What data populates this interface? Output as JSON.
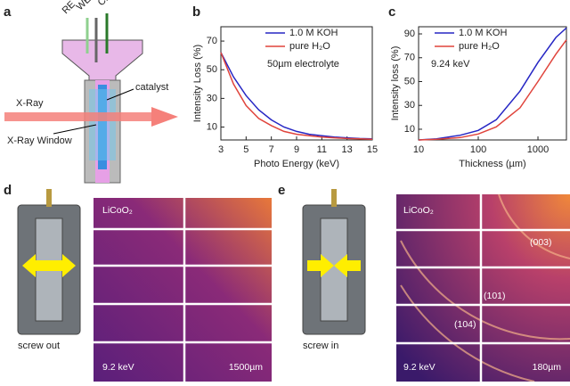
{
  "panel_labels": [
    "a",
    "b",
    "c",
    "d",
    "e"
  ],
  "panel_a": {
    "electrodes": [
      "RE",
      "WE",
      "CE"
    ],
    "catalyst": "catalyst",
    "beam": "X-Ray",
    "window": "X-Ray Window"
  },
  "chart_data": [
    {
      "type": "line",
      "xlabel": "Photo Energy (keV)",
      "ylabel": "Intensity Loss (%)",
      "annotation": "50µm electrolyte",
      "x": [
        3,
        4,
        5,
        6,
        7,
        8,
        9,
        10,
        11,
        12,
        13,
        14,
        15
      ],
      "series": [
        {
          "name": "1.0 M KOH",
          "color": "#2626c4",
          "values": [
            62,
            45,
            32,
            22,
            15,
            10,
            7,
            5,
            4,
            3,
            2.5,
            2,
            1.8
          ]
        },
        {
          "name": "pure H₂O",
          "color": "#e0443c",
          "values": [
            62,
            40,
            25,
            16,
            11,
            7,
            5,
            4,
            3,
            2.5,
            2,
            1.8,
            1.5
          ]
        }
      ],
      "xlim": [
        3,
        15
      ],
      "xticks": [
        3,
        5,
        7,
        9,
        11,
        13,
        15
      ],
      "ylim": [
        1,
        80
      ],
      "yticks": [
        10,
        30,
        50,
        70
      ]
    },
    {
      "type": "line",
      "xlabel": "Thickness (µm)",
      "ylabel": "Intensity loss (%)",
      "annotation": "9.24 keV",
      "xscale": "log",
      "x": [
        10,
        20,
        50,
        100,
        200,
        500,
        1000,
        2000,
        3000
      ],
      "series": [
        {
          "name": "1.0 M KOH",
          "color": "#2626c4",
          "values": [
            1,
            2,
            5,
            9,
            18,
            42,
            66,
            87,
            95
          ]
        },
        {
          "name": "pure H₂O",
          "color": "#e0443c",
          "values": [
            1,
            1.5,
            3,
            6,
            12,
            28,
            50,
            73,
            85
          ]
        }
      ],
      "xlim": [
        10,
        3000
      ],
      "xticks": [
        10,
        100,
        1000
      ],
      "ylim": [
        1,
        96
      ],
      "yticks": [
        10,
        30,
        50,
        70,
        90
      ]
    }
  ],
  "panel_d": {
    "caption": "screw out",
    "sample": "LiCoO₂",
    "energy": "9.2 keV",
    "distance": "1500µm"
  },
  "panel_e": {
    "caption": "screw in",
    "sample": "LiCoO₂",
    "energy": "9.2 keV",
    "distance": "180µm",
    "peaks": [
      "(003)",
      "(101)",
      "(104)"
    ]
  }
}
